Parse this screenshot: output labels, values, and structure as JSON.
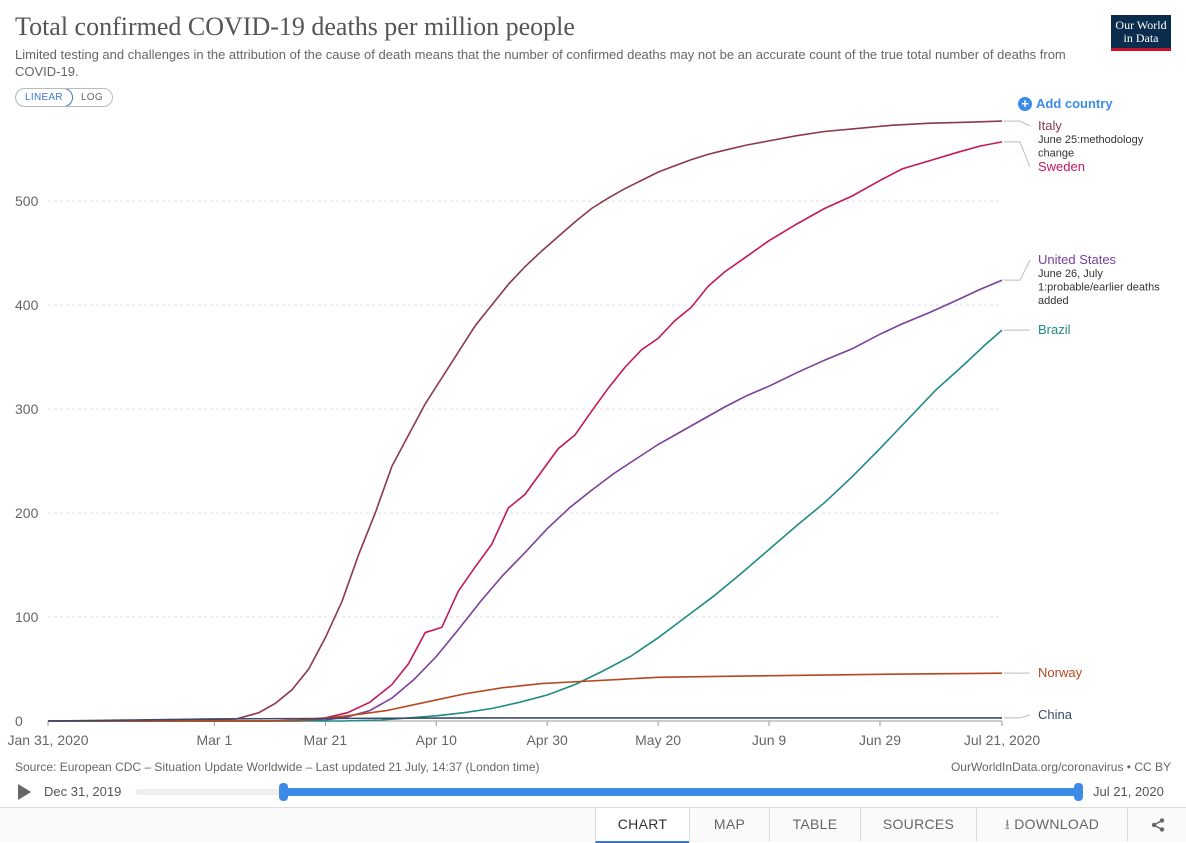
{
  "header": {
    "title": "Total confirmed COVID-19 deaths per million people",
    "subtitle": "Limited testing and challenges in the attribution of the cause of death means that the number of confirmed deaths may not be an accurate count of the true total number of deaths from COVID-19.",
    "logo_line1": "Our World",
    "logo_line2": "in Data"
  },
  "controls": {
    "linear_label": "LINEAR",
    "log_label": "LOG",
    "add_country_label": "Add country"
  },
  "chart_data": {
    "type": "line",
    "title": "Total confirmed COVID-19 deaths per million people",
    "ylim": [
      0,
      580
    ],
    "yticks": [
      0,
      100,
      200,
      300,
      400,
      500
    ],
    "xlim": [
      "2020-01-31",
      "2020-07-21"
    ],
    "xticks": [
      {
        "date": "2020-01-31",
        "label": "Jan 31, 2020"
      },
      {
        "date": "2020-03-01",
        "label": "Mar 1"
      },
      {
        "date": "2020-03-21",
        "label": "Mar 21"
      },
      {
        "date": "2020-04-10",
        "label": "Apr 10"
      },
      {
        "date": "2020-04-30",
        "label": "Apr 30"
      },
      {
        "date": "2020-05-20",
        "label": "May 20"
      },
      {
        "date": "2020-06-09",
        "label": "Jun 9"
      },
      {
        "date": "2020-06-29",
        "label": "Jun 29"
      },
      {
        "date": "2020-07-21",
        "label": "Jul 21, 2020"
      }
    ],
    "grid": true,
    "series": [
      {
        "name": "Italy",
        "color": "#8c3a4a",
        "points": [
          [
            "2020-01-31",
            0
          ],
          [
            "2020-02-21",
            0
          ],
          [
            "2020-03-01",
            1
          ],
          [
            "2020-03-05",
            2
          ],
          [
            "2020-03-09",
            8
          ],
          [
            "2020-03-12",
            17
          ],
          [
            "2020-03-15",
            30
          ],
          [
            "2020-03-18",
            50
          ],
          [
            "2020-03-21",
            80
          ],
          [
            "2020-03-24",
            115
          ],
          [
            "2020-03-27",
            160
          ],
          [
            "2020-03-30",
            200
          ],
          [
            "2020-04-02",
            245
          ],
          [
            "2020-04-05",
            275
          ],
          [
            "2020-04-08",
            305
          ],
          [
            "2020-04-11",
            330
          ],
          [
            "2020-04-14",
            355
          ],
          [
            "2020-04-17",
            380
          ],
          [
            "2020-04-20",
            400
          ],
          [
            "2020-04-23",
            420
          ],
          [
            "2020-04-26",
            437
          ],
          [
            "2020-04-29",
            452
          ],
          [
            "2020-05-02",
            466
          ],
          [
            "2020-05-05",
            480
          ],
          [
            "2020-05-08",
            493
          ],
          [
            "2020-05-11",
            503
          ],
          [
            "2020-05-14",
            512
          ],
          [
            "2020-05-17",
            520
          ],
          [
            "2020-05-20",
            528
          ],
          [
            "2020-05-23",
            534
          ],
          [
            "2020-05-26",
            540
          ],
          [
            "2020-05-29",
            545
          ],
          [
            "2020-06-01",
            549
          ],
          [
            "2020-06-05",
            554
          ],
          [
            "2020-06-09",
            558
          ],
          [
            "2020-06-14",
            563
          ],
          [
            "2020-06-19",
            567
          ],
          [
            "2020-06-25",
            570
          ],
          [
            "2020-07-01",
            573
          ],
          [
            "2020-07-08",
            575
          ],
          [
            "2020-07-15",
            576
          ],
          [
            "2020-07-21",
            577
          ]
        ]
      },
      {
        "name": "Sweden",
        "color": "#c2185b",
        "points": [
          [
            "2020-01-31",
            0
          ],
          [
            "2020-03-11",
            0
          ],
          [
            "2020-03-16",
            1
          ],
          [
            "2020-03-21",
            3
          ],
          [
            "2020-03-25",
            8
          ],
          [
            "2020-03-29",
            18
          ],
          [
            "2020-04-02",
            35
          ],
          [
            "2020-04-05",
            55
          ],
          [
            "2020-04-08",
            85
          ],
          [
            "2020-04-11",
            90
          ],
          [
            "2020-04-14",
            125
          ],
          [
            "2020-04-17",
            148
          ],
          [
            "2020-04-20",
            170
          ],
          [
            "2020-04-23",
            205
          ],
          [
            "2020-04-26",
            218
          ],
          [
            "2020-04-29",
            240
          ],
          [
            "2020-05-02",
            262
          ],
          [
            "2020-05-05",
            275
          ],
          [
            "2020-05-08",
            298
          ],
          [
            "2020-05-11",
            320
          ],
          [
            "2020-05-14",
            340
          ],
          [
            "2020-05-17",
            357
          ],
          [
            "2020-05-20",
            368
          ],
          [
            "2020-05-23",
            385
          ],
          [
            "2020-05-26",
            398
          ],
          [
            "2020-05-29",
            418
          ],
          [
            "2020-06-01",
            432
          ],
          [
            "2020-06-05",
            447
          ],
          [
            "2020-06-09",
            462
          ],
          [
            "2020-06-14",
            478
          ],
          [
            "2020-06-19",
            493
          ],
          [
            "2020-06-24",
            505
          ],
          [
            "2020-06-29",
            520
          ],
          [
            "2020-07-03",
            531
          ],
          [
            "2020-07-08",
            539
          ],
          [
            "2020-07-13",
            547
          ],
          [
            "2020-07-17",
            553
          ],
          [
            "2020-07-21",
            557
          ]
        ]
      },
      {
        "name": "United States",
        "color": "#7a3f9b",
        "points": [
          [
            "2020-01-31",
            0
          ],
          [
            "2020-03-16",
            0
          ],
          [
            "2020-03-21",
            1
          ],
          [
            "2020-03-25",
            4
          ],
          [
            "2020-03-29",
            10
          ],
          [
            "2020-04-02",
            22
          ],
          [
            "2020-04-06",
            40
          ],
          [
            "2020-04-10",
            62
          ],
          [
            "2020-04-14",
            88
          ],
          [
            "2020-04-18",
            115
          ],
          [
            "2020-04-22",
            140
          ],
          [
            "2020-04-26",
            162
          ],
          [
            "2020-04-30",
            185
          ],
          [
            "2020-05-04",
            205
          ],
          [
            "2020-05-08",
            222
          ],
          [
            "2020-05-12",
            238
          ],
          [
            "2020-05-16",
            252
          ],
          [
            "2020-05-20",
            266
          ],
          [
            "2020-05-24",
            278
          ],
          [
            "2020-05-28",
            290
          ],
          [
            "2020-06-01",
            302
          ],
          [
            "2020-06-05",
            313
          ],
          [
            "2020-06-09",
            322
          ],
          [
            "2020-06-14",
            335
          ],
          [
            "2020-06-19",
            347
          ],
          [
            "2020-06-24",
            358
          ],
          [
            "2020-06-29",
            372
          ],
          [
            "2020-07-03",
            382
          ],
          [
            "2020-07-08",
            393
          ],
          [
            "2020-07-13",
            405
          ],
          [
            "2020-07-17",
            415
          ],
          [
            "2020-07-21",
            424
          ]
        ]
      },
      {
        "name": "Brazil",
        "color": "#1f8a86",
        "points": [
          [
            "2020-01-31",
            0
          ],
          [
            "2020-03-24",
            0
          ],
          [
            "2020-03-31",
            1
          ],
          [
            "2020-04-05",
            3
          ],
          [
            "2020-04-10",
            5
          ],
          [
            "2020-04-15",
            8
          ],
          [
            "2020-04-20",
            12
          ],
          [
            "2020-04-25",
            18
          ],
          [
            "2020-04-30",
            25
          ],
          [
            "2020-05-05",
            35
          ],
          [
            "2020-05-10",
            48
          ],
          [
            "2020-05-15",
            62
          ],
          [
            "2020-05-20",
            80
          ],
          [
            "2020-05-25",
            100
          ],
          [
            "2020-05-30",
            120
          ],
          [
            "2020-06-04",
            142
          ],
          [
            "2020-06-09",
            165
          ],
          [
            "2020-06-14",
            188
          ],
          [
            "2020-06-19",
            210
          ],
          [
            "2020-06-24",
            235
          ],
          [
            "2020-06-29",
            262
          ],
          [
            "2020-07-04",
            290
          ],
          [
            "2020-07-09",
            318
          ],
          [
            "2020-07-14",
            342
          ],
          [
            "2020-07-18",
            362
          ],
          [
            "2020-07-21",
            376
          ]
        ]
      },
      {
        "name": "Norway",
        "color": "#b5481f",
        "points": [
          [
            "2020-01-31",
            0
          ],
          [
            "2020-03-11",
            0
          ],
          [
            "2020-03-18",
            1
          ],
          [
            "2020-03-25",
            5
          ],
          [
            "2020-04-01",
            10
          ],
          [
            "2020-04-08",
            18
          ],
          [
            "2020-04-15",
            26
          ],
          [
            "2020-04-22",
            32
          ],
          [
            "2020-04-29",
            36
          ],
          [
            "2020-05-06",
            38
          ],
          [
            "2020-05-13",
            40
          ],
          [
            "2020-05-20",
            42
          ],
          [
            "2020-06-01",
            43
          ],
          [
            "2020-06-15",
            44
          ],
          [
            "2020-07-01",
            45
          ],
          [
            "2020-07-21",
            46
          ]
        ]
      },
      {
        "name": "China",
        "color": "#3a4a6b",
        "points": [
          [
            "2020-01-31",
            0
          ],
          [
            "2020-02-15",
            1
          ],
          [
            "2020-03-01",
            2
          ],
          [
            "2020-04-17",
            3
          ],
          [
            "2020-07-21",
            3
          ]
        ]
      }
    ],
    "labels": [
      {
        "series": "Italy",
        "text": "Italy",
        "annotation": [
          "June 25:methodology",
          "change"
        ]
      },
      {
        "series": "Sweden",
        "text": "Sweden",
        "annotation": []
      },
      {
        "series": "United States",
        "text": "United States",
        "annotation": [
          "June 26, July",
          "1:probable/earlier deaths",
          "added"
        ]
      },
      {
        "series": "Brazil",
        "text": "Brazil",
        "annotation": []
      },
      {
        "series": "Norway",
        "text": "Norway",
        "annotation": []
      },
      {
        "series": "China",
        "text": "China",
        "annotation": []
      }
    ]
  },
  "footer": {
    "source": "Source: European CDC – Situation Update Worldwide – Last updated 21 July, 14:37 (London time)",
    "url": "OurWorldInData.org/coronavirus • CC BY"
  },
  "timeline": {
    "start_label": "Dec 31, 2019",
    "end_label": "Jul 21, 2020"
  },
  "tabs": [
    {
      "label": "CHART",
      "active": true
    },
    {
      "label": "MAP",
      "active": false
    },
    {
      "label": "TABLE",
      "active": false
    },
    {
      "label": "SOURCES",
      "active": false
    },
    {
      "label": "DOWNLOAD",
      "active": false
    }
  ],
  "icons": {
    "share": "share-icon",
    "download": "download-icon",
    "play": "play-icon",
    "add": "plus-circle-icon"
  }
}
